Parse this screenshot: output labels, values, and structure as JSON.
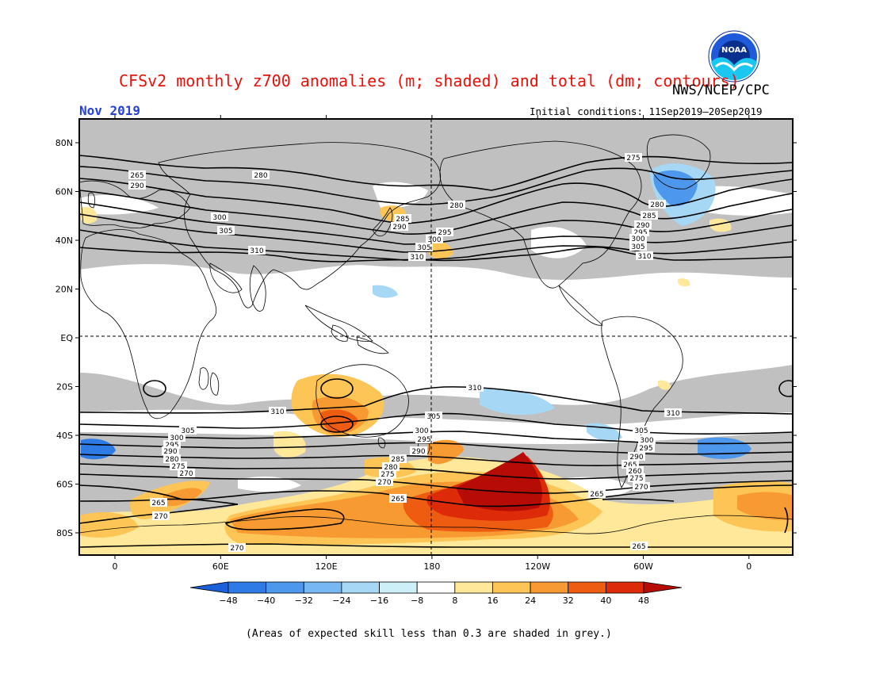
{
  "title": "CFSv2 monthly z700 anomalies (m; shaded) and total (dm; contours)",
  "agency": "NWS/NCEP/CPC",
  "month": "Nov 2019",
  "initial_conditions": "Initial conditions: 11Sep2019–20Sep2019",
  "footnote": "(Areas of expected skill less than 0.3 are shaded in grey.)",
  "logo_text": "NOAA",
  "lat_labels": [
    "80N",
    "60N",
    "40N",
    "20N",
    "EQ",
    "20S",
    "40S",
    "60S",
    "80S"
  ],
  "lon_labels": [
    "0",
    "60E",
    "120E",
    "180",
    "120W",
    "60W",
    "0"
  ],
  "colorbar": {
    "labels": [
      "-48",
      "-40",
      "-32",
      "-24",
      "-16",
      "-8",
      "8",
      "16",
      "24",
      "32",
      "40",
      "48"
    ],
    "colors": [
      "#1a5fd8",
      "#2e7be6",
      "#4d97ec",
      "#77b7f2",
      "#a6d8f6",
      "#cdeff8",
      "#ffffff",
      "#ffe89a",
      "#fcc555",
      "#f89a32",
      "#ee5c12",
      "#dd2a08",
      "#b50c06"
    ]
  },
  "colors": {
    "skill_grey": "#c0c0c0",
    "title_red": "#e8100a",
    "month_blue": "#2440e0"
  },
  "contour_labels": [
    "265",
    "290",
    "280",
    "300",
    "305",
    "310",
    "285",
    "295",
    "275",
    "270",
    "260"
  ]
}
